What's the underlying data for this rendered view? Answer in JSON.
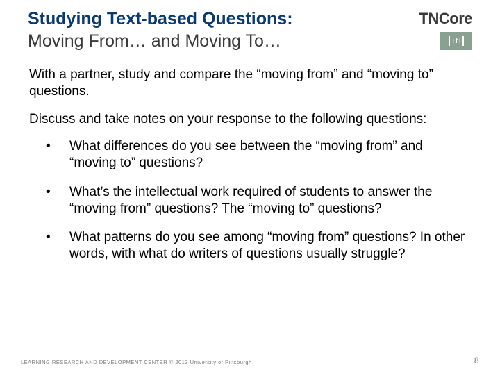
{
  "header": {
    "title_line1": "Studying Text-based Questions:",
    "title_line2": "Moving From… and Moving To…",
    "logo_tncore": "TNCore",
    "logo_ifl": "ifl"
  },
  "body": {
    "para1": "With a partner, study and compare the “moving from” and “moving to” questions.",
    "para2": "Discuss and take notes on your response to the following questions:",
    "bullets": [
      "What differences do you see between the “moving from” and “moving to” questions?",
      "What’s the intellectual work required of students to answer the “moving from” questions? The “moving to” questions?",
      "What patterns do you see among “moving from” questions? In other words, with what do writers of questions usually struggle?"
    ]
  },
  "footer": {
    "left": "LEARNING RESEARCH AND DEVELOPMENT CENTER   © 2013 University of Pittsburgh",
    "page": "8"
  },
  "colors": {
    "title_primary": "#0b3a6d",
    "title_secondary": "#3a3a3a",
    "text": "#000000",
    "footer_text": "#7a7a7a",
    "ifl_bg": "#8aa090",
    "background": "#ffffff"
  },
  "typography": {
    "title_fontsize": 25,
    "body_fontsize": 19,
    "footer_fontsize": 7.5,
    "pagenum_fontsize": 12,
    "font_family": "Arial"
  }
}
